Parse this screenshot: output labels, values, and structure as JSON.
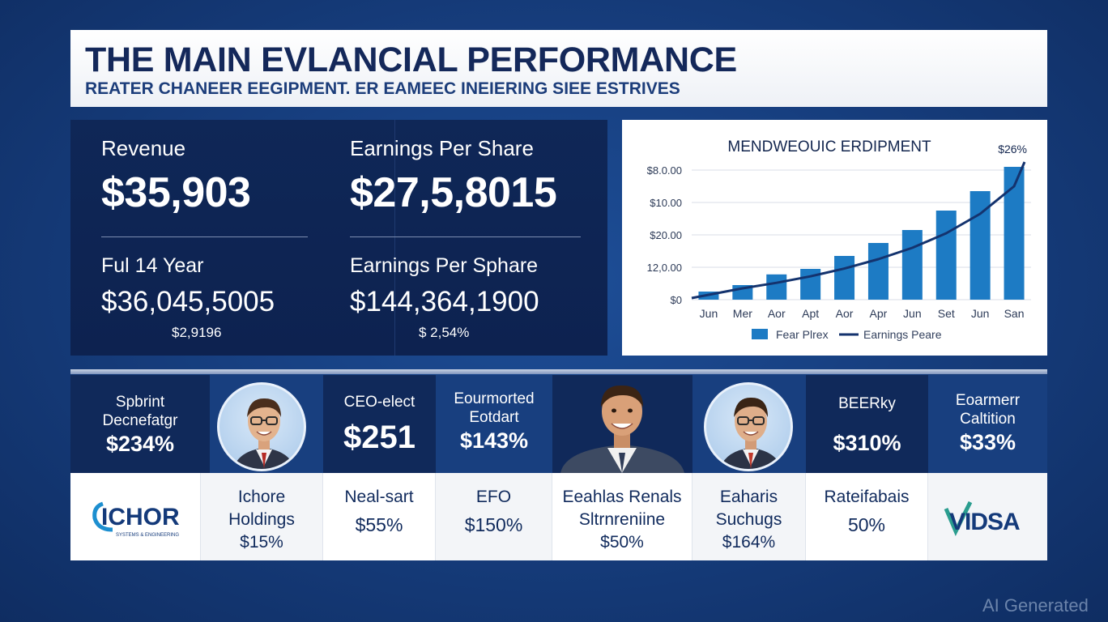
{
  "header": {
    "title": "THE MAIN EVLANCIAL PERFORMANCE",
    "subtitle": "REATER CHANEER EEGIPMENT. ER EAMEEC INEIERING SIEE ESTRIVES"
  },
  "kpis": {
    "left": {
      "label": "Revenue",
      "value": "$35,903",
      "label2": "Ful 14 Year",
      "value2": "$36,045,5005",
      "small": "$2,9196"
    },
    "right": {
      "label": "Earnings Per Share",
      "value": "$27,5,8015",
      "label2": "Earnings Per Sphare",
      "value2": "$144,364,1900",
      "small": "$ 2,54%"
    }
  },
  "chart_data": {
    "type": "bar",
    "title": "MENDWEOUIC ERDIPMENT",
    "annotation": "$26%",
    "categories": [
      "Jun",
      "Mer",
      "Aor",
      "Apt",
      "Aor",
      "Apr",
      "Jun",
      "Set",
      "Jun",
      "San"
    ],
    "y_tick_labels": [
      "$0",
      "12,0.00",
      "$20.00",
      "$10.00",
      "$8.0.00"
    ],
    "values": [
      2.5,
      4.5,
      7.8,
      9.5,
      13.5,
      17.5,
      21.5,
      27.5,
      33.5,
      41
    ],
    "line_values": [
      1.5,
      3.5,
      5.2,
      7.2,
      9.6,
      12.5,
      16.0,
      20.5,
      26.5,
      35
    ],
    "ylim": [
      0,
      40
    ],
    "bar_color": "#1d7bc4",
    "line_color": "#14336e",
    "legend": [
      "Fear Plrex",
      "Earnings Peare"
    ],
    "legend_position": "bottom",
    "grid": true
  },
  "people_row": {
    "c1": {
      "line1": "Spbrint",
      "line2": "Decnefatgr",
      "value": "$234%"
    },
    "c3": {
      "line1": "CEO-elect",
      "value": "$251"
    },
    "c4": {
      "line1": "Eourmorted",
      "line2": "Eotdart",
      "value": "$143%"
    },
    "c7": {
      "line1": "BEERky",
      "value": "$310%"
    },
    "c8": {
      "line1": "Eoarmerr",
      "line2": "Caltition",
      "value": "$33%"
    }
  },
  "company_row": {
    "logo1": {
      "name": "ICHOR",
      "tagline": "SYSTEMS & ENGINEERING"
    },
    "c2": {
      "line1": "Ichore",
      "line2": "Holdings",
      "value": "$15%"
    },
    "c3": {
      "line1": "Neal-sart",
      "value": "$55%"
    },
    "c4": {
      "line1": "EFO",
      "value": "$150%"
    },
    "c5": {
      "line1": "Eeahlas Renals",
      "line2": "Sltrnreniine",
      "value": "$50%"
    },
    "c6": {
      "line1": "Eaharis",
      "line2": "Suchugs",
      "value": "$164%"
    },
    "c7": {
      "line1": "Rateifabais",
      "value": "50%"
    },
    "logo8": {
      "name": "VIDSA"
    }
  },
  "watermark": "AI Generated"
}
